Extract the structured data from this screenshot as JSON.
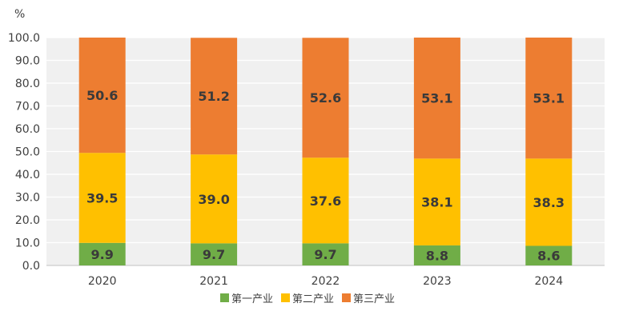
{
  "chart_data": {
    "type": "bar",
    "stacked": true,
    "unit_label": "%",
    "categories": [
      "2020",
      "2021",
      "2022",
      "2023",
      "2024"
    ],
    "series": [
      {
        "name": "第一产业",
        "color": "#70ad47",
        "values": [
          9.9,
          9.7,
          9.7,
          8.8,
          8.6
        ]
      },
      {
        "name": "第二产业",
        "color": "#ffc000",
        "values": [
          39.5,
          39.0,
          37.6,
          38.1,
          38.3
        ]
      },
      {
        "name": "第三产业",
        "color": "#ed7d31",
        "values": [
          50.6,
          51.2,
          52.6,
          53.1,
          53.1
        ]
      }
    ],
    "ylim": [
      0,
      100
    ],
    "yticks": [
      "0.0",
      "10.0",
      "20.0",
      "30.0",
      "40.0",
      "50.0",
      "60.0",
      "70.0",
      "80.0",
      "90.0",
      "100.0"
    ],
    "grid": true,
    "plot_background": "#f0f0f0",
    "legend_position": "bottom-center"
  }
}
